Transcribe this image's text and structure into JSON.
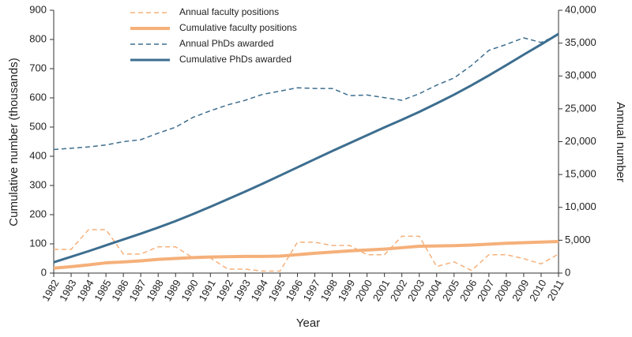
{
  "chart_data": {
    "type": "line",
    "x_label": "Year",
    "y_label": "Cumulative number (thousands)",
    "y2_label": "Annual number",
    "categories": [
      "1982",
      "1983",
      "1984",
      "1985",
      "1986",
      "1987",
      "1988",
      "1989",
      "1990",
      "1991",
      "1992",
      "1993",
      "1994",
      "1995",
      "1996",
      "1997",
      "1998",
      "1999",
      "2000",
      "2001",
      "2002",
      "2003",
      "2004",
      "2005",
      "2006",
      "2007",
      "2008",
      "2009",
      "2010",
      "2011"
    ],
    "ylim": [
      0,
      900
    ],
    "yticks": [
      0,
      100,
      200,
      300,
      400,
      500,
      600,
      700,
      800,
      900
    ],
    "y2lim": [
      0,
      40000
    ],
    "y2ticks": [
      0,
      {
        "value": 5000,
        "label": "5,000"
      },
      {
        "value": 10000,
        "label": "10,000"
      },
      {
        "value": 15000,
        "label": "15,000"
      },
      {
        "value": 20000,
        "label": "20,000"
      },
      {
        "value": 25000,
        "label": "25,000"
      },
      {
        "value": 30000,
        "label": "30,000"
      },
      {
        "value": 35000,
        "label": "35,000"
      },
      {
        "value": 40000,
        "label": "40,000"
      }
    ],
    "legend": "upper left",
    "series": [
      {
        "name": "Annual faculty positions",
        "color": "#f5b07a",
        "dash": true,
        "width": 1.5,
        "axis": "y2",
        "values": [
          3600,
          3600,
          6600,
          6600,
          2900,
          2900,
          4000,
          4000,
          2300,
          2300,
          600,
          600,
          300,
          300,
          4700,
          4700,
          4200,
          4200,
          2800,
          2800,
          5600,
          5600,
          1000,
          1700,
          400,
          2800,
          2800,
          2200,
          1400,
          2900
        ]
      },
      {
        "name": "Cumulative faculty positions",
        "color": "#f5b07a",
        "dash": false,
        "width": 4,
        "values": [
          17,
          22,
          28,
          35,
          38,
          42,
          47,
          50,
          53,
          55,
          56,
          57,
          57,
          58,
          63,
          68,
          72,
          76,
          79,
          82,
          87,
          92,
          93,
          94,
          96,
          99,
          102,
          104,
          106,
          108
        ]
      },
      {
        "name": "Annual PhDs awarded",
        "color": "#3d6e8f",
        "dash": true,
        "width": 1.5,
        "axis": "y2",
        "values": [
          18800,
          19000,
          19200,
          19500,
          20000,
          20300,
          21300,
          22200,
          23700,
          24700,
          25600,
          26300,
          27200,
          27700,
          28200,
          28100,
          28100,
          27000,
          27100,
          26700,
          26300,
          27300,
          28600,
          29700,
          31600,
          33900,
          34800,
          35800,
          35100,
          36300
        ]
      },
      {
        "name": "Cumulative PhDs awarded",
        "color": "#3d6e8f",
        "dash": false,
        "width": 3,
        "values": [
          37,
          56,
          75,
          95,
          115,
          135,
          156,
          178,
          202,
          227,
          253,
          279,
          306,
          334,
          362,
          390,
          418,
          445,
          472,
          499,
          525,
          552,
          581,
          611,
          643,
          677,
          712,
          748,
          783,
          819
        ]
      }
    ]
  }
}
